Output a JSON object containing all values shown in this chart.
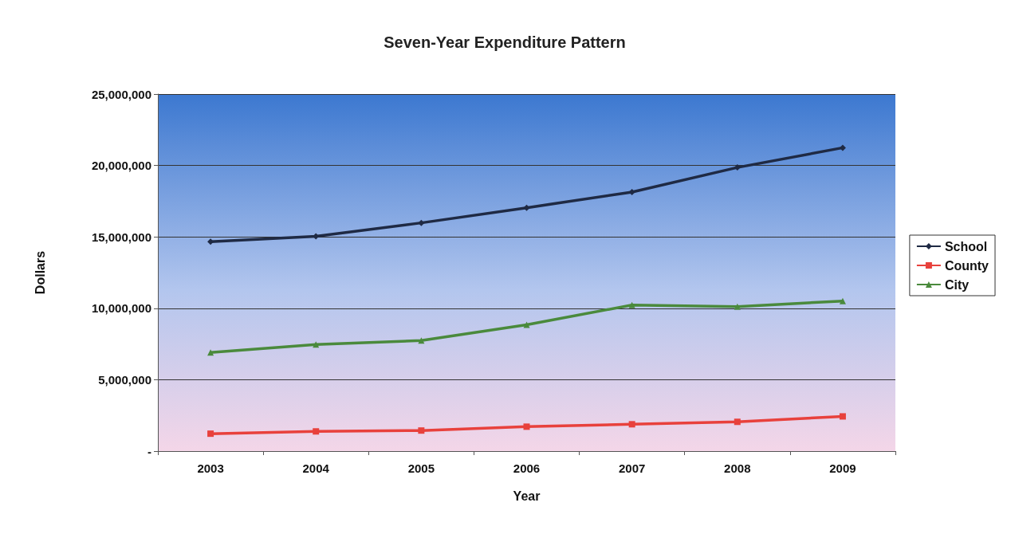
{
  "chart_data": {
    "type": "line",
    "title": "Seven-Year Expenditure Pattern",
    "xlabel": "Year",
    "ylabel": "Dollars",
    "categories": [
      "2003",
      "2004",
      "2005",
      "2006",
      "2007",
      "2008",
      "2009"
    ],
    "series": [
      {
        "name": "School",
        "color": "#1f2a44",
        "marker": "diamond",
        "values": [
          14660000,
          15040000,
          15980000,
          17040000,
          18140000,
          19860000,
          21240000
        ]
      },
      {
        "name": "County",
        "color": "#e8413c",
        "marker": "square",
        "values": [
          1220000,
          1380000,
          1440000,
          1710000,
          1880000,
          2050000,
          2430000
        ]
      },
      {
        "name": "City",
        "color": "#4a8a3c",
        "marker": "triangle",
        "values": [
          6910000,
          7470000,
          7740000,
          8850000,
          10230000,
          10120000,
          10510000
        ]
      }
    ],
    "ylim": [
      0,
      25000000
    ],
    "yticks": [
      {
        "value": 0,
        "label": "-"
      },
      {
        "value": 5000000,
        "label": "5,000,000"
      },
      {
        "value": 10000000,
        "label": "10,000,000"
      },
      {
        "value": 15000000,
        "label": "15,000,000"
      },
      {
        "value": 20000000,
        "label": "20,000,000"
      },
      {
        "value": 25000000,
        "label": "25,000,000"
      }
    ],
    "grid": "y",
    "legend": "right"
  }
}
